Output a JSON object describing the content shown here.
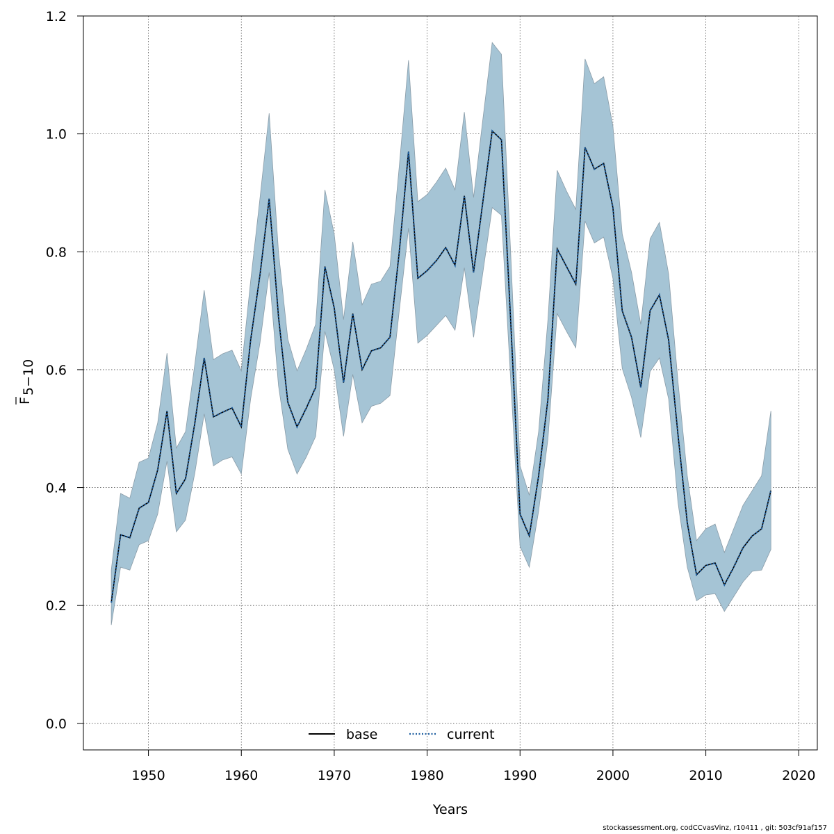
{
  "chart_data": {
    "type": "line",
    "xlabel": "Years",
    "ylabel": "F",
    "ylabel_subscript": "5−10",
    "xlim": [
      1943,
      2022
    ],
    "ylim": [
      -0.045,
      1.2
    ],
    "xticks": [
      1950,
      1960,
      1970,
      1980,
      1990,
      2000,
      2010,
      2020
    ],
    "yticks": [
      0.0,
      0.2,
      0.4,
      0.6,
      0.8,
      1.0,
      1.2
    ],
    "grid": true,
    "legend_position": "bottom",
    "band_color": "#a5c4d5",
    "x": [
      1946,
      1947,
      1948,
      1949,
      1950,
      1951,
      1952,
      1953,
      1954,
      1955,
      1956,
      1957,
      1958,
      1959,
      1960,
      1961,
      1962,
      1963,
      1964,
      1965,
      1966,
      1967,
      1968,
      1969,
      1970,
      1971,
      1972,
      1973,
      1974,
      1975,
      1976,
      1977,
      1978,
      1979,
      1980,
      1981,
      1982,
      1983,
      1984,
      1985,
      1986,
      1987,
      1988,
      1989,
      1990,
      1991,
      1992,
      1993,
      1994,
      1995,
      1996,
      1997,
      1998,
      1999,
      2000,
      2001,
      2002,
      2003,
      2004,
      2005,
      2006,
      2007,
      2008,
      2009,
      2010,
      2011,
      2012,
      2013,
      2014,
      2015,
      2016,
      2017
    ],
    "series": [
      {
        "name": "base",
        "color": "#000000",
        "style": "solid",
        "values": [
          0.205,
          0.32,
          0.315,
          0.365,
          0.375,
          0.43,
          0.53,
          0.39,
          0.415,
          0.51,
          0.62,
          0.52,
          0.528,
          0.535,
          0.503,
          0.65,
          0.76,
          0.89,
          0.69,
          0.545,
          0.503,
          0.535,
          0.57,
          0.775,
          0.705,
          0.578,
          0.695,
          0.6,
          0.632,
          0.637,
          0.655,
          0.8,
          0.97,
          0.755,
          0.768,
          0.785,
          0.807,
          0.777,
          0.895,
          0.765,
          0.885,
          1.005,
          0.99,
          0.68,
          0.355,
          0.318,
          0.42,
          0.55,
          0.805,
          0.775,
          0.745,
          0.977,
          0.94,
          0.95,
          0.875,
          0.7,
          0.655,
          0.57,
          0.7,
          0.727,
          0.65,
          0.49,
          0.34,
          0.252,
          0.268,
          0.272,
          0.235,
          0.265,
          0.298,
          0.318,
          0.33,
          0.395
        ]
      },
      {
        "name": "current",
        "color": "#1f5fa0",
        "style": "dotted",
        "values": [
          0.205,
          0.32,
          0.315,
          0.365,
          0.375,
          0.43,
          0.53,
          0.39,
          0.415,
          0.51,
          0.62,
          0.52,
          0.528,
          0.535,
          0.503,
          0.65,
          0.76,
          0.89,
          0.69,
          0.545,
          0.503,
          0.535,
          0.57,
          0.775,
          0.705,
          0.578,
          0.695,
          0.6,
          0.632,
          0.637,
          0.655,
          0.8,
          0.97,
          0.755,
          0.768,
          0.785,
          0.807,
          0.777,
          0.895,
          0.765,
          0.885,
          1.005,
          0.99,
          0.68,
          0.355,
          0.318,
          0.42,
          0.55,
          0.805,
          0.775,
          0.745,
          0.977,
          0.94,
          0.95,
          0.875,
          0.7,
          0.655,
          0.57,
          0.7,
          0.727,
          0.65,
          0.49,
          0.34,
          0.252,
          0.268,
          0.272,
          0.235,
          0.265,
          0.298,
          0.318,
          0.33,
          0.395
        ]
      }
    ],
    "band": {
      "lower": [
        0.167,
        0.265,
        0.26,
        0.303,
        0.31,
        0.355,
        0.445,
        0.325,
        0.345,
        0.425,
        0.525,
        0.437,
        0.447,
        0.452,
        0.423,
        0.55,
        0.645,
        0.765,
        0.573,
        0.465,
        0.423,
        0.452,
        0.487,
        0.665,
        0.6,
        0.487,
        0.592,
        0.51,
        0.538,
        0.543,
        0.556,
        0.7,
        0.84,
        0.645,
        0.658,
        0.675,
        0.692,
        0.667,
        0.773,
        0.655,
        0.765,
        0.875,
        0.862,
        0.58,
        0.3,
        0.265,
        0.36,
        0.482,
        0.695,
        0.665,
        0.637,
        0.852,
        0.815,
        0.825,
        0.755,
        0.602,
        0.553,
        0.485,
        0.597,
        0.62,
        0.55,
        0.375,
        0.265,
        0.208,
        0.218,
        0.22,
        0.19,
        0.215,
        0.24,
        0.258,
        0.26,
        0.295
      ],
      "upper": [
        0.26,
        0.39,
        0.382,
        0.443,
        0.45,
        0.51,
        0.628,
        0.467,
        0.495,
        0.61,
        0.735,
        0.617,
        0.627,
        0.633,
        0.598,
        0.75,
        0.89,
        1.035,
        0.8,
        0.652,
        0.598,
        0.635,
        0.677,
        0.905,
        0.83,
        0.685,
        0.817,
        0.71,
        0.745,
        0.75,
        0.775,
        0.945,
        1.125,
        0.885,
        0.897,
        0.918,
        0.942,
        0.905,
        1.037,
        0.892,
        1.025,
        1.155,
        1.135,
        0.795,
        0.437,
        0.387,
        0.495,
        0.685,
        0.938,
        0.903,
        0.872,
        1.127,
        1.085,
        1.097,
        1.013,
        0.83,
        0.765,
        0.677,
        0.822,
        0.85,
        0.762,
        0.58,
        0.42,
        0.31,
        0.33,
        0.338,
        0.29,
        0.33,
        0.37,
        0.395,
        0.42,
        0.53
      ]
    },
    "footer": "stockassessment.org, codCCvasVinz, r10411 , git: 503cf91af157"
  }
}
